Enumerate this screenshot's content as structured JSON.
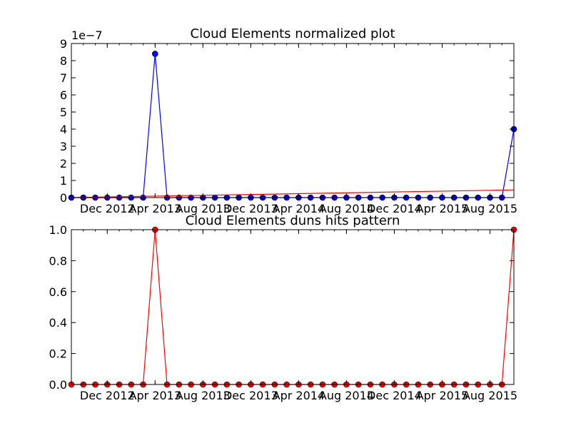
{
  "chart_data": [
    {
      "type": "line",
      "title": "Cloud Elements normalized plot",
      "xlabel": "",
      "ylabel": "",
      "y_offset_label": "1e−7",
      "x_tick_labels": [
        "Dec 2012",
        "Apr 2013",
        "Aug 2013",
        "Dec 2013",
        "Apr 2014",
        "Aug 2014",
        "Dec 2014",
        "Apr 2015",
        "Aug 2015"
      ],
      "y_tick_labels": [
        "0",
        "1",
        "2",
        "3",
        "4",
        "5",
        "6",
        "7",
        "8",
        "9"
      ],
      "ylim": [
        0,
        9
      ],
      "grid": false,
      "series": [
        {
          "color": "#0000ff",
          "marker": "circle",
          "x": [
            "2012-09",
            "2012-10",
            "2012-11",
            "2012-12",
            "2013-01",
            "2013-02",
            "2013-03",
            "2013-04",
            "2013-05",
            "2013-06",
            "2013-07",
            "2013-08",
            "2013-09",
            "2013-10",
            "2013-11",
            "2013-12",
            "2014-01",
            "2014-02",
            "2014-03",
            "2014-04",
            "2014-05",
            "2014-06",
            "2014-07",
            "2014-08",
            "2014-09",
            "2014-10",
            "2014-11",
            "2014-12",
            "2015-01",
            "2015-02",
            "2015-03",
            "2015-04",
            "2015-05",
            "2015-06",
            "2015-07",
            "2015-08",
            "2015-09",
            "2015-10"
          ],
          "values": [
            0,
            0,
            0,
            0,
            0,
            0,
            0,
            8.4,
            0,
            0,
            0,
            0,
            0,
            0,
            0,
            0,
            0,
            0,
            0,
            0,
            0,
            0,
            0,
            0,
            0,
            0,
            0,
            0,
            0,
            0,
            0,
            0,
            0,
            0,
            0,
            0,
            0,
            4.0
          ]
        },
        {
          "color": "#ff0000",
          "marker": "none",
          "kind": "trend",
          "x": [
            "2012-09",
            "2015-10"
          ],
          "values": [
            0.0,
            0.45
          ]
        }
      ]
    },
    {
      "type": "line",
      "title": "Cloud Elements duns hits pattern",
      "xlabel": "",
      "ylabel": "",
      "x_tick_labels": [
        "Dec 2012",
        "Apr 2013",
        "Aug 2013",
        "Dec 2013",
        "Apr 2014",
        "Aug 2014",
        "Dec 2014",
        "Apr 2015",
        "Aug 2015"
      ],
      "y_tick_labels": [
        "0.0",
        "0.2",
        "0.4",
        "0.6",
        "0.8",
        "1.0"
      ],
      "ylim": [
        0,
        1
      ],
      "grid": false,
      "series": [
        {
          "color": "#ff0000",
          "marker": "circle",
          "x": [
            "2012-09",
            "2012-10",
            "2012-11",
            "2012-12",
            "2013-01",
            "2013-02",
            "2013-03",
            "2013-04",
            "2013-05",
            "2013-06",
            "2013-07",
            "2013-08",
            "2013-09",
            "2013-10",
            "2013-11",
            "2013-12",
            "2014-01",
            "2014-02",
            "2014-03",
            "2014-04",
            "2014-05",
            "2014-06",
            "2014-07",
            "2014-08",
            "2014-09",
            "2014-10",
            "2014-11",
            "2014-12",
            "2015-01",
            "2015-02",
            "2015-03",
            "2015-04",
            "2015-05",
            "2015-06",
            "2015-07",
            "2015-08",
            "2015-09",
            "2015-10"
          ],
          "values": [
            0,
            0,
            0,
            0,
            0,
            0,
            0,
            1,
            0,
            0,
            0,
            0,
            0,
            0,
            0,
            0,
            0,
            0,
            0,
            0,
            0,
            0,
            0,
            0,
            0,
            0,
            0,
            0,
            0,
            0,
            0,
            0,
            0,
            0,
            0,
            0,
            0,
            1
          ]
        }
      ]
    }
  ]
}
